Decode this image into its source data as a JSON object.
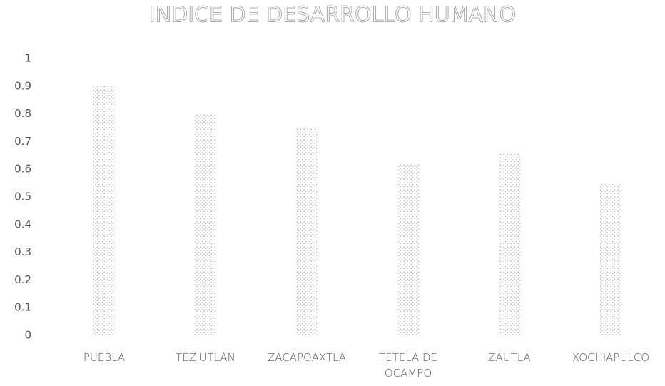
{
  "chart_data": {
    "type": "bar",
    "title": "INDICE DE DESARROLLO HUMANO",
    "categories": [
      "PUEBLA",
      "TEZIUTLAN",
      "ZACAPOAXTLA",
      "TETELA DE OCAMPO",
      "ZAUTLA",
      "XOCHIAPULCO"
    ],
    "values": [
      0.9,
      0.8,
      0.75,
      0.62,
      0.66,
      0.55
    ],
    "color": "#8a8a8a",
    "ylim": [
      0,
      1
    ],
    "yticks": [
      0,
      0.1,
      0.2,
      0.3,
      0.4,
      0.5,
      0.6,
      0.7,
      0.8,
      0.9,
      1
    ],
    "grid": false
  }
}
